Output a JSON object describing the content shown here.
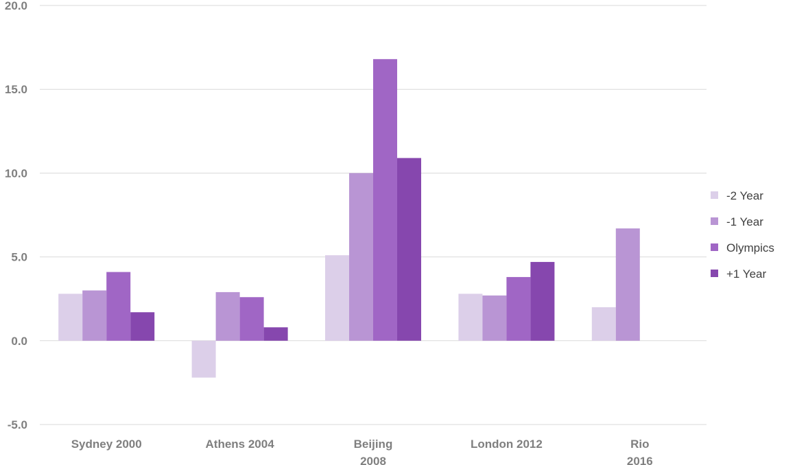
{
  "chart_data": {
    "type": "bar",
    "title": "",
    "xlabel": "",
    "ylabel": "",
    "ylim": [
      -5,
      20
    ],
    "yticks": [
      "20.0",
      "15.0",
      "10.0",
      "5.0",
      "0.0",
      "-5.0"
    ],
    "grid": true,
    "legend_position": "right",
    "categories": [
      [
        "Sydney 2000"
      ],
      [
        "Athens 2004"
      ],
      [
        "Beijing",
        "2008"
      ],
      [
        "London 2012"
      ],
      [
        "Rio",
        "2016"
      ]
    ],
    "series": [
      {
        "name": "-2 Year",
        "color": "#dccfe9",
        "values": [
          2.8,
          -2.2,
          5.1,
          2.8,
          2.0
        ]
      },
      {
        "name": "-1 Year",
        "color": "#b995d4",
        "values": [
          3.0,
          2.9,
          10.0,
          2.7,
          6.7
        ]
      },
      {
        "name": "Olympics",
        "color": "#a066c5",
        "values": [
          4.1,
          2.6,
          16.8,
          3.8,
          null
        ]
      },
      {
        "name": "+1 Year",
        "color": "#8647ae",
        "values": [
          1.7,
          0.8,
          10.9,
          4.7,
          null
        ]
      }
    ]
  }
}
